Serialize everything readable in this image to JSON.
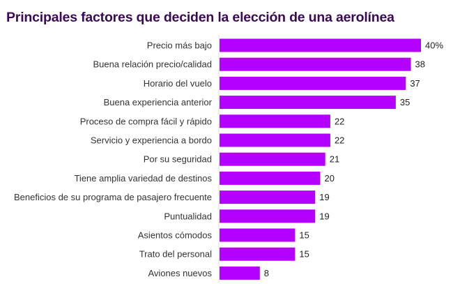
{
  "chart_data": {
    "type": "bar",
    "orientation": "horizontal",
    "title": "Principales factores que deciden la elección de una aerolínea",
    "categories": [
      "Precio más bajo",
      "Buena relación precio/calidad",
      "Horario del vuelo",
      "Buena experiencia anterior",
      "Proceso de compra fácil y rápido",
      "Servicio y experiencia a bordo",
      "Por su seguridad",
      "Tiene amplia variedad de destinos",
      "Beneficios de su programa de pasajero frecuente",
      "Puntualidad",
      "Asientos cómodos",
      "Trato del personal",
      "Aviones nuevos"
    ],
    "values": [
      40,
      38,
      37,
      35,
      22,
      22,
      21,
      20,
      19,
      19,
      15,
      15,
      8
    ],
    "data_labels": [
      "40%",
      "38",
      "37",
      "35",
      "22",
      "22",
      "21",
      "20",
      "19",
      "19",
      "15",
      "15",
      "8"
    ],
    "unit": "%",
    "xlim": [
      0,
      40
    ],
    "grid": false,
    "colors": {
      "bar": "#b400ff",
      "title": "#3b0a57",
      "axis": "#dddddd"
    }
  }
}
